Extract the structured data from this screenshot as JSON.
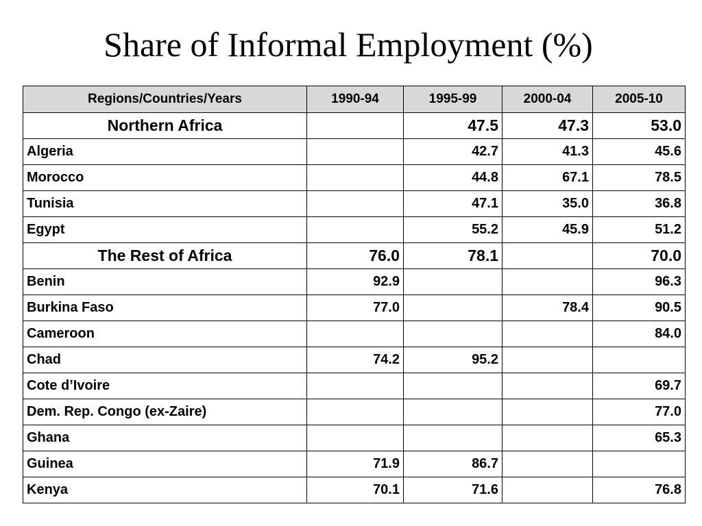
{
  "title": "Share of Informal Employment (%)",
  "table": {
    "headers": [
      "Regions/Countries/Years",
      "1990-94",
      "1995-99",
      "2000-04",
      "2005-10"
    ],
    "rows": [
      {
        "name": "Northern Africa",
        "region": true,
        "values": [
          "",
          "47.5",
          "47.3",
          "53.0"
        ]
      },
      {
        "name": "Algeria",
        "region": false,
        "values": [
          "",
          "42.7",
          "41.3",
          "45.6"
        ]
      },
      {
        "name": "Morocco",
        "region": false,
        "values": [
          "",
          "44.8",
          "67.1",
          "78.5"
        ]
      },
      {
        "name": "Tunisia",
        "region": false,
        "values": [
          "",
          "47.1",
          "35.0",
          "36.8"
        ]
      },
      {
        "name": "Egypt",
        "region": false,
        "values": [
          "",
          "55.2",
          "45.9",
          "51.2"
        ]
      },
      {
        "name": "The Rest of Africa",
        "region": true,
        "values": [
          "76.0",
          "78.1",
          "",
          "70.0"
        ]
      },
      {
        "name": "Benin",
        "region": false,
        "values": [
          "92.9",
          "",
          "",
          "96.3"
        ]
      },
      {
        "name": "Burkina Faso",
        "region": false,
        "values": [
          "77.0",
          "",
          "78.4",
          "90.5"
        ]
      },
      {
        "name": "Cameroon",
        "region": false,
        "values": [
          "",
          "",
          "",
          "84.0"
        ]
      },
      {
        "name": "Chad",
        "region": false,
        "values": [
          "74.2",
          "95.2",
          "",
          ""
        ]
      },
      {
        "name": "Cote d’Ivoire",
        "region": false,
        "values": [
          "",
          "",
          "",
          "69.7"
        ]
      },
      {
        "name": "Dem. Rep. Congo (ex-Zaire)",
        "region": false,
        "values": [
          "",
          "",
          "",
          "77.0"
        ]
      },
      {
        "name": "Ghana",
        "region": false,
        "values": [
          "",
          "",
          "",
          "65.3"
        ]
      },
      {
        "name": "Guinea",
        "region": false,
        "values": [
          "71.9",
          "86.7",
          "",
          ""
        ]
      },
      {
        "name": "Kenya",
        "region": false,
        "values": [
          "70.1",
          "71.6",
          "",
          "76.8"
        ]
      }
    ]
  }
}
